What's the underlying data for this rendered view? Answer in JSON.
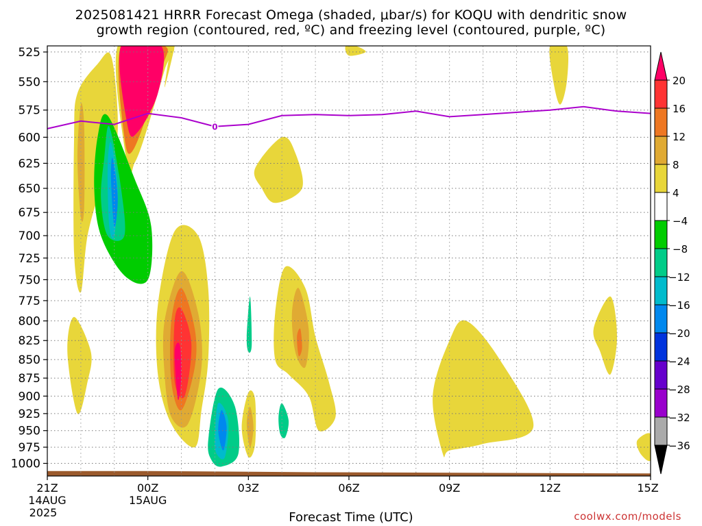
{
  "title": {
    "line1": "2025081421 HRRR Forecast Omega (shaded, μbar/s) for KOQU with dendritic snow",
    "line2": "growth region (contoured, red, ºC) and freezing level (contoured, purple, ºC)"
  },
  "credit": "coolwx.com/models",
  "chart_data": {
    "type": "heatmap",
    "xlabel": "Forecast Time (UTC)",
    "ylabel": "",
    "x_ticks": [
      {
        "t": 0,
        "label": "21Z",
        "sub1": "14AUG",
        "sub2": "2025"
      },
      {
        "t": 3,
        "label": "00Z",
        "sub1": "15AUG",
        "sub2": ""
      },
      {
        "t": 6,
        "label": "03Z",
        "sub1": "",
        "sub2": ""
      },
      {
        "t": 9,
        "label": "06Z",
        "sub1": "",
        "sub2": ""
      },
      {
        "t": 12,
        "label": "09Z",
        "sub1": "",
        "sub2": ""
      },
      {
        "t": 15,
        "label": "12Z",
        "sub1": "",
        "sub2": ""
      },
      {
        "t": 18,
        "label": "15Z",
        "sub1": "",
        "sub2": ""
      }
    ],
    "xlim": [
      0,
      18
    ],
    "y_ticks": [
      525,
      550,
      575,
      600,
      625,
      650,
      675,
      700,
      725,
      750,
      775,
      800,
      825,
      850,
      875,
      900,
      925,
      950,
      975,
      1000
    ],
    "ylim": [
      520,
      1020
    ],
    "y_log": true,
    "colorbar": {
      "labels": [
        "20",
        "16",
        "12",
        "8",
        "4",
        "−4",
        "−8",
        "−12",
        "−16",
        "−20",
        "−24",
        "−28",
        "−32",
        "−36"
      ],
      "colors": [
        "#ff0066",
        "#ff3333",
        "#ee7722",
        "#e0aa33",
        "#e8d63a",
        "#ffffff",
        "#00cc00",
        "#00cc88",
        "#00bbcc",
        "#0088ee",
        "#0033dd",
        "#6600cc",
        "#9900cc",
        "#aaaaaa",
        "#000000"
      ]
    },
    "freezing_level": {
      "color": "#aa00cc",
      "label": "0",
      "points": [
        [
          0,
          592
        ],
        [
          1,
          585
        ],
        [
          2,
          588
        ],
        [
          3,
          578
        ],
        [
          4,
          582
        ],
        [
          5,
          590
        ],
        [
          6,
          588
        ],
        [
          7,
          580
        ],
        [
          8,
          579
        ],
        [
          9,
          580
        ],
        [
          10,
          579
        ],
        [
          11,
          576
        ],
        [
          12,
          581
        ],
        [
          13,
          579
        ],
        [
          14,
          577
        ],
        [
          15,
          575
        ],
        [
          16,
          572
        ],
        [
          17,
          576
        ],
        [
          18,
          578
        ]
      ]
    },
    "terrain": {
      "color": "#9b5a2c",
      "top_hpa": [
        [
          0,
          1012
        ],
        [
          3,
          1012
        ],
        [
          8,
          1014
        ],
        [
          18,
          1016
        ]
      ]
    },
    "regions": [
      {
        "level": 4,
        "pts": [
          [
            0.8,
            600
          ],
          [
            0.9,
            560
          ],
          [
            1.5,
            535
          ],
          [
            1.9,
            528
          ],
          [
            2.1,
            580
          ],
          [
            2.0,
            620
          ],
          [
            1.6,
            650
          ],
          [
            1.2,
            700
          ],
          [
            1.0,
            765
          ],
          [
            0.8,
            720
          ]
        ]
      },
      {
        "level": 8,
        "pts": [
          [
            0.9,
            620
          ],
          [
            1.0,
            570
          ],
          [
            1.1,
            590
          ],
          [
            1.1,
            670
          ],
          [
            1.0,
            680
          ]
        ]
      },
      {
        "level": 4,
        "pts": [
          [
            2.1,
            520
          ],
          [
            3.7,
            520
          ],
          [
            3.5,
            540
          ],
          [
            2.9,
            600
          ],
          [
            2.6,
            625
          ],
          [
            2.4,
            630
          ]
        ]
      },
      {
        "level": 12,
        "pts": [
          [
            2.2,
            520
          ],
          [
            3.5,
            520
          ],
          [
            3.4,
            540
          ],
          [
            2.6,
            610
          ],
          [
            2.3,
            600
          ]
        ]
      },
      {
        "level": 20,
        "pts": [
          [
            2.2,
            520
          ],
          [
            3.4,
            520
          ],
          [
            3.3,
            560
          ],
          [
            2.7,
            595
          ],
          [
            2.4,
            590
          ]
        ]
      },
      {
        "level": 4,
        "pts": [
          [
            3.7,
            520
          ],
          [
            3.8,
            520
          ],
          [
            3.5,
            555
          ]
        ]
      },
      {
        "level": -4,
        "pts": [
          [
            1.5,
            600
          ],
          [
            1.8,
            580
          ],
          [
            2.6,
            640
          ],
          [
            3.1,
            690
          ],
          [
            3.0,
            750
          ],
          [
            2.3,
            745
          ],
          [
            1.6,
            700
          ],
          [
            1.4,
            650
          ]
        ]
      },
      {
        "level": -8,
        "pts": [
          [
            1.7,
            620
          ],
          [
            1.85,
            590
          ],
          [
            2.2,
            650
          ],
          [
            2.3,
            700
          ],
          [
            1.8,
            700
          ],
          [
            1.6,
            660
          ]
        ]
      },
      {
        "level": -12,
        "pts": [
          [
            1.8,
            630
          ],
          [
            1.9,
            605
          ],
          [
            2.1,
            650
          ],
          [
            2.0,
            700
          ],
          [
            1.85,
            690
          ]
        ]
      },
      {
        "level": -16,
        "pts": [
          [
            1.9,
            640
          ],
          [
            1.95,
            620
          ],
          [
            2.1,
            660
          ],
          [
            2.0,
            690
          ]
        ]
      },
      {
        "level": 4,
        "pts": [
          [
            3.3,
            780
          ],
          [
            3.8,
            695
          ],
          [
            4.5,
            700
          ],
          [
            4.8,
            760
          ],
          [
            4.8,
            850
          ],
          [
            4.6,
            920
          ],
          [
            4.4,
            975
          ],
          [
            3.7,
            940
          ],
          [
            3.3,
            870
          ]
        ]
      },
      {
        "level": 8,
        "pts": [
          [
            3.5,
            800
          ],
          [
            4.0,
            740
          ],
          [
            4.5,
            790
          ],
          [
            4.6,
            860
          ],
          [
            4.2,
            940
          ],
          [
            3.7,
            930
          ],
          [
            3.5,
            870
          ]
        ]
      },
      {
        "level": 12,
        "pts": [
          [
            3.7,
            800
          ],
          [
            4.0,
            760
          ],
          [
            4.4,
            810
          ],
          [
            4.4,
            860
          ],
          [
            4.0,
            920
          ],
          [
            3.7,
            880
          ]
        ]
      },
      {
        "level": 16,
        "pts": [
          [
            3.8,
            800
          ],
          [
            4.0,
            785
          ],
          [
            4.3,
            830
          ],
          [
            4.1,
            900
          ],
          [
            3.8,
            880
          ]
        ]
      },
      {
        "level": 20,
        "pts": [
          [
            3.8,
            840
          ],
          [
            3.95,
            830
          ],
          [
            4.0,
            870
          ],
          [
            3.9,
            905
          ]
        ]
      },
      {
        "level": 4,
        "pts": [
          [
            0.6,
            840
          ],
          [
            0.8,
            795
          ],
          [
            1.3,
            840
          ],
          [
            1.2,
            880
          ],
          [
            0.9,
            925
          ]
        ]
      },
      {
        "level": -8,
        "pts": [
          [
            4.8,
            965
          ],
          [
            5.1,
            890
          ],
          [
            5.6,
            915
          ],
          [
            5.7,
            985
          ],
          [
            5.2,
            1005
          ],
          [
            4.9,
            995
          ]
        ]
      },
      {
        "level": -12,
        "pts": [
          [
            5.0,
            960
          ],
          [
            5.1,
            910
          ],
          [
            5.4,
            935
          ],
          [
            5.3,
            990
          ],
          [
            5.05,
            985
          ]
        ]
      },
      {
        "level": -16,
        "pts": [
          [
            5.1,
            950
          ],
          [
            5.2,
            920
          ],
          [
            5.35,
            945
          ],
          [
            5.25,
            980
          ]
        ]
      },
      {
        "level": 4,
        "pts": [
          [
            5.8,
            945
          ],
          [
            6.0,
            895
          ],
          [
            6.2,
            905
          ],
          [
            6.2,
            970
          ],
          [
            6.0,
            990
          ]
        ]
      },
      {
        "level": 8,
        "pts": [
          [
            5.95,
            940
          ],
          [
            6.05,
            915
          ],
          [
            6.15,
            945
          ],
          [
            6.05,
            975
          ]
        ]
      },
      {
        "level": -8,
        "pts": [
          [
            6.9,
            930
          ],
          [
            7.0,
            910
          ],
          [
            7.2,
            935
          ],
          [
            7.1,
            960
          ],
          [
            6.95,
            955
          ]
        ]
      },
      {
        "level": -8,
        "pts": [
          [
            5.95,
            820
          ],
          [
            6.05,
            770
          ],
          [
            6.1,
            830
          ],
          [
            6.0,
            840
          ]
        ]
      },
      {
        "level": 4,
        "pts": [
          [
            6.8,
            790
          ],
          [
            7.1,
            735
          ],
          [
            7.7,
            760
          ],
          [
            8.0,
            820
          ],
          [
            8.4,
            880
          ],
          [
            8.6,
            930
          ],
          [
            8.1,
            950
          ],
          [
            7.8,
            900
          ],
          [
            7.2,
            870
          ],
          [
            6.8,
            850
          ]
        ]
      },
      {
        "level": 8,
        "pts": [
          [
            7.3,
            790
          ],
          [
            7.5,
            760
          ],
          [
            7.8,
            810
          ],
          [
            7.7,
            860
          ],
          [
            7.4,
            840
          ]
        ]
      },
      {
        "level": 12,
        "pts": [
          [
            7.45,
            820
          ],
          [
            7.55,
            810
          ],
          [
            7.6,
            835
          ],
          [
            7.5,
            845
          ]
        ]
      },
      {
        "level": 4,
        "pts": [
          [
            6.2,
            630
          ],
          [
            7.0,
            600
          ],
          [
            7.4,
            615
          ],
          [
            7.6,
            650
          ],
          [
            6.8,
            665
          ],
          [
            6.4,
            650
          ]
        ]
      },
      {
        "level": 4,
        "pts": [
          [
            8.9,
            520
          ],
          [
            9.2,
            520
          ],
          [
            9.5,
            525
          ],
          [
            9.0,
            528
          ]
        ]
      },
      {
        "level": 4,
        "pts": [
          [
            11.5,
            900
          ],
          [
            12.0,
            825
          ],
          [
            12.5,
            800
          ],
          [
            13.5,
            850
          ],
          [
            14.5,
            945
          ],
          [
            13.0,
            970
          ],
          [
            12.0,
            980
          ],
          [
            11.8,
            985
          ]
        ]
      },
      {
        "level": 4,
        "pts": [
          [
            15.0,
            520
          ],
          [
            15.5,
            520
          ],
          [
            15.5,
            550
          ],
          [
            15.3,
            570
          ],
          [
            15.1,
            550
          ]
        ]
      },
      {
        "level": 4,
        "pts": [
          [
            16.3,
            810
          ],
          [
            16.8,
            770
          ],
          [
            17.0,
            820
          ],
          [
            16.8,
            870
          ],
          [
            16.5,
            840
          ]
        ]
      },
      {
        "level": 4,
        "pts": [
          [
            17.6,
            965
          ],
          [
            18.0,
            955
          ],
          [
            18.0,
            995
          ],
          [
            17.7,
            985
          ]
        ]
      }
    ]
  }
}
